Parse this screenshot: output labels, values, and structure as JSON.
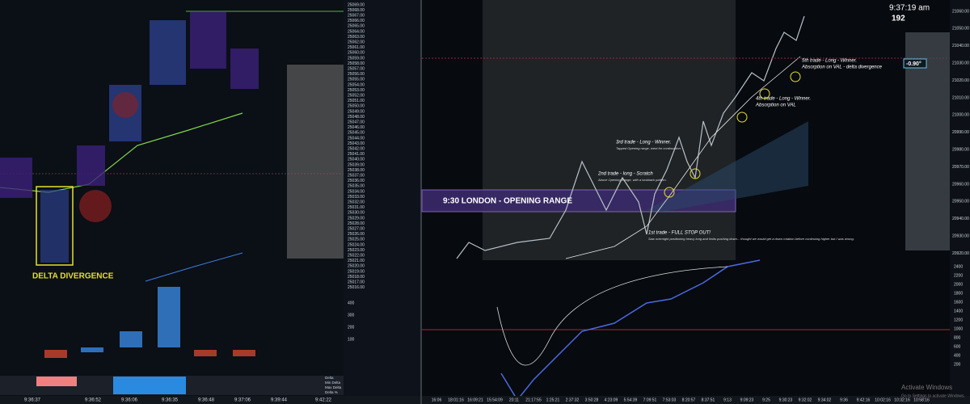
{
  "header": {
    "clock": "9:37:19 am",
    "count": "192",
    "angle": "-0.90°"
  },
  "left_chart": {
    "annotation": "DELTA DIVERGENCE",
    "time_labels": [
      "9:36:37",
      "9:36:52",
      "9:36:06",
      "9:36:35",
      "9:36:48",
      "9:37:06",
      "9:39:44",
      "9:42:22"
    ],
    "ladder_prices": [
      "25069.00",
      "25068.00",
      "25067.00",
      "25066.00",
      "25065.00",
      "25064.00",
      "25063.00",
      "25062.00",
      "25061.00",
      "25060.00",
      "25059.00",
      "25058.00",
      "25057.00",
      "25056.00",
      "25055.00",
      "25054.00",
      "25053.00",
      "25052.00",
      "25051.00",
      "25050.00",
      "25049.00",
      "25048.00",
      "25047.00",
      "25046.00",
      "25045.00",
      "25044.00",
      "25043.00",
      "25042.00",
      "25041.00",
      "25040.00",
      "25039.00",
      "25038.00",
      "25037.00",
      "25036.00",
      "25035.00",
      "25034.00",
      "25033.00",
      "25032.00",
      "25031.00",
      "25030.00",
      "25029.00",
      "25028.00",
      "25027.00",
      "25026.00",
      "25025.00",
      "25024.00",
      "25023.00",
      "25022.00",
      "25021.00",
      "25020.00",
      "25019.00",
      "25018.00",
      "25017.00",
      "25016.00"
    ],
    "lower_labels": [
      "400",
      "300",
      "200",
      "100"
    ],
    "row_labels": [
      "Delta",
      "Min Delta",
      "Max Delta",
      "Delta %"
    ]
  },
  "right_chart": {
    "opening_range": "9:30 LONDON - OPENING RANGE",
    "trades": [
      {
        "title": "1st trade  -  FULL STOP OUT!",
        "note": "Saw overnight positioning heavy long and limits pushing down... thought we would get a down rotation before continuing higher but I was wrong."
      },
      {
        "title": "2nd trade - long - Scratch",
        "note": "Above Opening Range, with a lookback pattern."
      },
      {
        "title": "3rd trade  -  Long - Winner.",
        "note": "Tapped Opening range, went for continuation."
      },
      {
        "title": "4th trade  -  Long - Winner.",
        "note": "Absorption on VAL"
      },
      {
        "title": "5th trade - Long - Winner.",
        "note": "Absorption on VAL - delta divergence"
      }
    ],
    "price_labels": [
      "21060.00",
      "21050.00",
      "21040.00",
      "21030.00",
      "21020.00",
      "21010.00",
      "21000.00",
      "20990.00",
      "20980.00",
      "20970.00",
      "20960.00",
      "20950.00",
      "20940.00",
      "20930.00",
      "20920.00"
    ],
    "lower_labels": [
      "2400",
      "2200",
      "2000",
      "1800",
      "1600",
      "1400",
      "1200",
      "1000",
      "800",
      "600",
      "400",
      "200"
    ],
    "time_labels": [
      "16:06",
      "18:01:16",
      "16:09:21",
      "15:54:09",
      "20:11",
      "21:17:55",
      "1:25:21",
      "2:37:32",
      "3:50:28",
      "4:23:09",
      "5:54:39",
      "7:09:51",
      "7:53:03",
      "8:20:57",
      "8:37:51",
      "9:13",
      "9:09:23",
      "9:25",
      "9:30:23",
      "9:32:02",
      "9:34:02",
      "9:36",
      "9:42:16",
      "10:02:16",
      "10:32:16",
      "10:58:16"
    ]
  },
  "watermark": {
    "title": "Activate Windows",
    "subtitle": "Go to Settings to activate Windows."
  }
}
